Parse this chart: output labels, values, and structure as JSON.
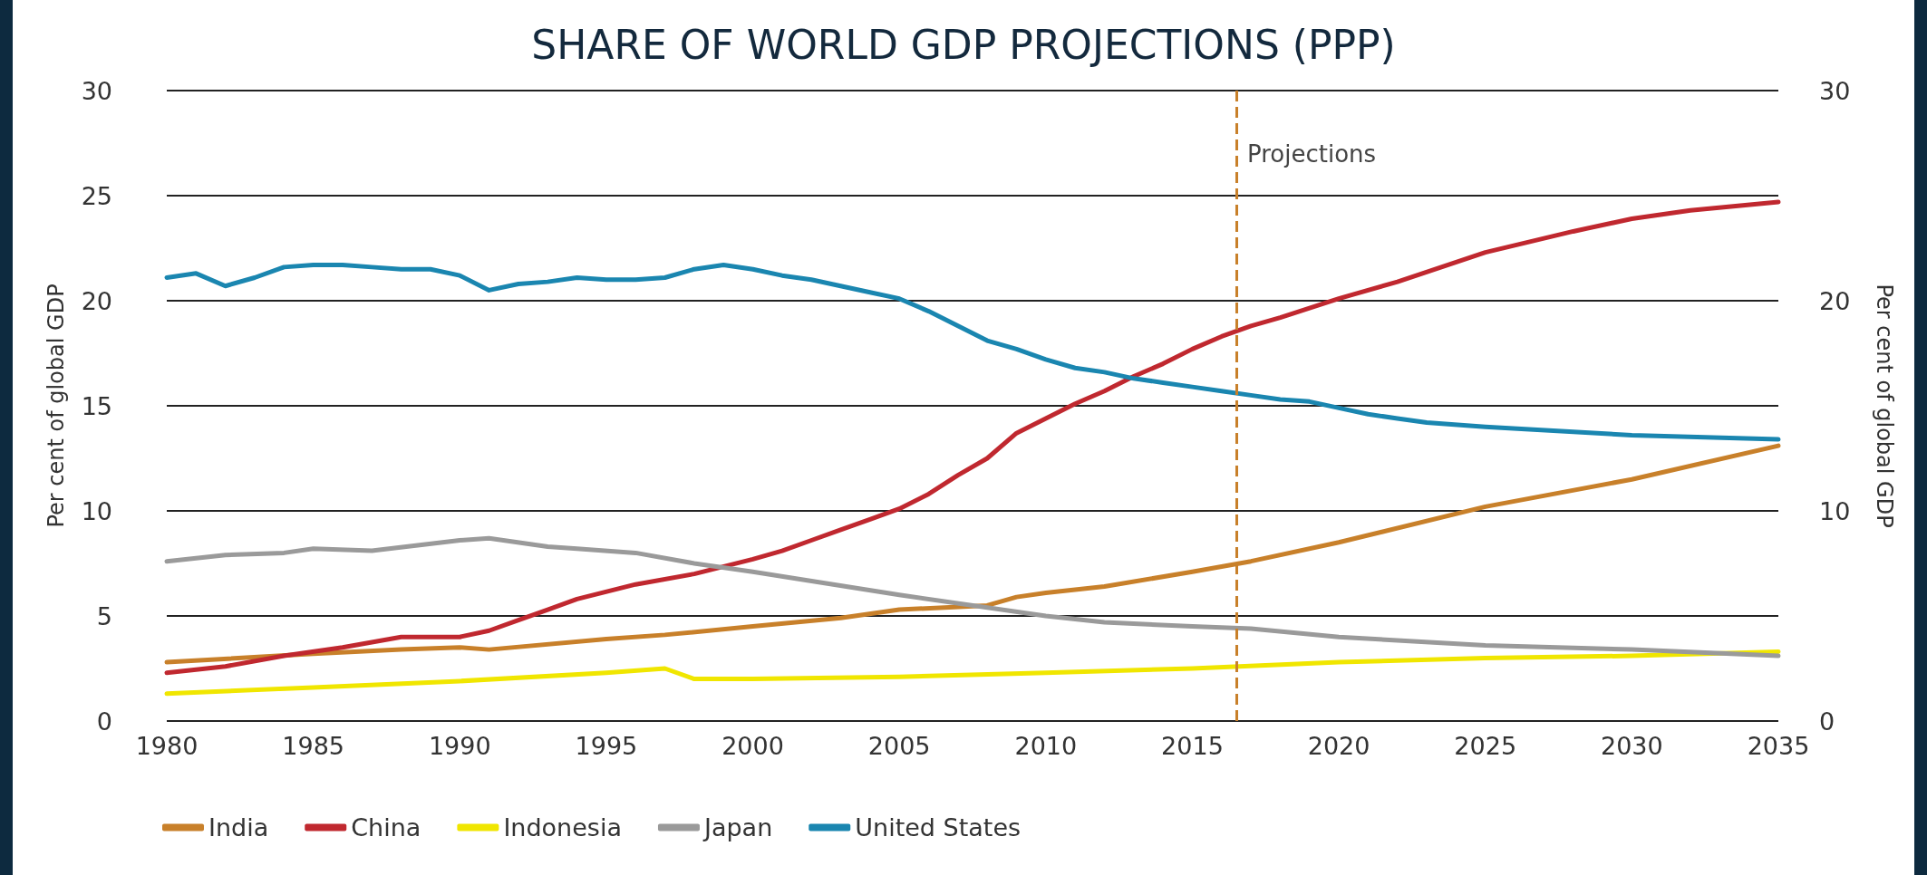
{
  "chart_data": {
    "type": "line",
    "title": "SHARE OF WORLD GDP PROJECTIONS (PPP)",
    "ylabel": "Per cent of global GDP",
    "y2label": "Per cent of global GDP",
    "xlim": [
      1980,
      2035
    ],
    "xticks": [
      1980,
      1985,
      1990,
      1995,
      2000,
      2005,
      2010,
      2015,
      2020,
      2025,
      2030,
      2035
    ],
    "ylim": [
      0,
      30
    ],
    "yticks": [
      0,
      5,
      10,
      15,
      20,
      25,
      30
    ],
    "y2lim": [
      0,
      30
    ],
    "y2ticks": [
      0,
      10,
      20,
      30
    ],
    "grid": "y",
    "legend": "bottom left",
    "marker": "none",
    "line_style": "solid",
    "ref_lines": [
      {
        "axis": "x",
        "value": 2016.5,
        "label": "Projections",
        "color": "#c8802a",
        "line_style": "dashed"
      }
    ],
    "series": [
      {
        "name": "India",
        "color": "#c8802a",
        "x": [
          1980,
          1985,
          1988,
          1990,
          1991,
          1995,
          1997,
          2000,
          2003,
          2005,
          2008,
          2009,
          2010,
          2012,
          2015,
          2017,
          2020,
          2025,
          2030,
          2035
        ],
        "values": [
          2.8,
          3.2,
          3.4,
          3.5,
          3.4,
          3.9,
          4.1,
          4.5,
          4.9,
          5.3,
          5.5,
          5.9,
          6.1,
          6.4,
          7.1,
          7.6,
          8.5,
          10.2,
          11.5,
          13.1
        ]
      },
      {
        "name": "China",
        "color": "#c0282f",
        "x": [
          1980,
          1982,
          1984,
          1986,
          1988,
          1990,
          1991,
          1992,
          1993,
          1994,
          1996,
          1998,
          2000,
          2001,
          2002,
          2003,
          2004,
          2005,
          2006,
          2007,
          2008,
          2009,
          2010,
          2011,
          2012,
          2013,
          2014,
          2015,
          2016,
          2017,
          2018,
          2020,
          2022,
          2025,
          2028,
          2030,
          2032,
          2035
        ],
        "values": [
          2.3,
          2.6,
          3.1,
          3.5,
          4.0,
          4.0,
          4.3,
          4.8,
          5.3,
          5.8,
          6.5,
          7.0,
          7.7,
          8.1,
          8.6,
          9.1,
          9.6,
          10.1,
          10.8,
          11.7,
          12.5,
          13.7,
          14.4,
          15.1,
          15.7,
          16.4,
          17.0,
          17.7,
          18.3,
          18.8,
          19.2,
          20.1,
          20.9,
          22.3,
          23.3,
          23.9,
          24.3,
          24.7
        ]
      },
      {
        "name": "Indonesia",
        "color": "#f0e600",
        "x": [
          1980,
          1985,
          1990,
          1995,
          1997,
          1998,
          2000,
          2005,
          2010,
          2015,
          2020,
          2025,
          2030,
          2035
        ],
        "values": [
          1.3,
          1.6,
          1.9,
          2.3,
          2.5,
          2.0,
          2.0,
          2.1,
          2.3,
          2.5,
          2.8,
          3.0,
          3.1,
          3.3
        ]
      },
      {
        "name": "Japan",
        "color": "#9a9a9a",
        "x": [
          1980,
          1982,
          1984,
          1985,
          1987,
          1990,
          1991,
          1993,
          1994,
          1996,
          1998,
          2000,
          2005,
          2010,
          2012,
          2015,
          2017,
          2020,
          2025,
          2030,
          2035
        ],
        "values": [
          7.6,
          7.9,
          8.0,
          8.2,
          8.1,
          8.6,
          8.7,
          8.3,
          8.2,
          8.0,
          7.5,
          7.1,
          6.0,
          5.0,
          4.7,
          4.5,
          4.4,
          4.0,
          3.6,
          3.4,
          3.1
        ]
      },
      {
        "name": "United States",
        "color": "#1a86b0",
        "x": [
          1980,
          1981,
          1982,
          1983,
          1984,
          1985,
          1986,
          1987,
          1988,
          1989,
          1990,
          1991,
          1992,
          1993,
          1994,
          1995,
          1996,
          1997,
          1998,
          1999,
          2000,
          2001,
          2002,
          2003,
          2004,
          2005,
          2006,
          2007,
          2008,
          2009,
          2010,
          2011,
          2012,
          2013,
          2014,
          2015,
          2016,
          2017,
          2018,
          2019,
          2020,
          2021,
          2022,
          2023,
          2025,
          2030,
          2035
        ],
        "values": [
          21.1,
          21.3,
          20.7,
          21.1,
          21.6,
          21.7,
          21.7,
          21.6,
          21.5,
          21.5,
          21.2,
          20.5,
          20.8,
          20.9,
          21.1,
          21.0,
          21.0,
          21.1,
          21.5,
          21.7,
          21.5,
          21.2,
          21.0,
          20.7,
          20.4,
          20.1,
          19.5,
          18.8,
          18.1,
          17.7,
          17.2,
          16.8,
          16.6,
          16.3,
          16.1,
          15.9,
          15.7,
          15.5,
          15.3,
          15.2,
          14.9,
          14.6,
          14.4,
          14.2,
          14.0,
          13.6,
          13.4
        ]
      }
    ]
  }
}
